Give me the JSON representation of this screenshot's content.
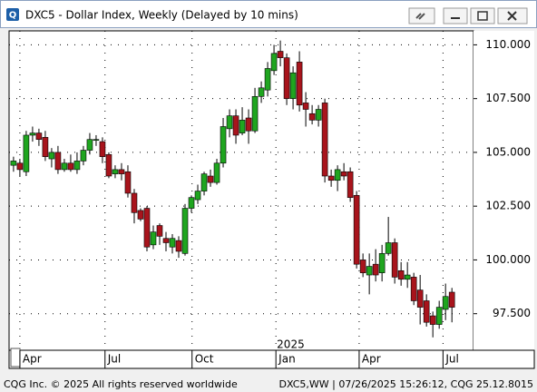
{
  "window": {
    "title": "DXC5 - Dollar Index, Weekly (Delayed by 10 mins)",
    "icon": "Q"
  },
  "footer": {
    "left": "CQG Inc. © 2025 All rights reserved worldwide",
    "right": "DXC5,WW | 07/26/2025 15:26:12, CQG 25.12.8015"
  },
  "chart_data": {
    "type": "candlestick",
    "up_color": "#1fa51f",
    "down_color": "#a8141c",
    "grid": true,
    "open": [
      104.4,
      104.5,
      104.1,
      105.8,
      105.9,
      105.7,
      104.7,
      105.0,
      104.2,
      104.5,
      104.2,
      104.6,
      105.1,
      105.6,
      105.5,
      104.9,
      104.0,
      104.2,
      104.1,
      103.1,
      102.3,
      102.4,
      100.7,
      101.6,
      101.0,
      100.6,
      100.9,
      100.3,
      102.4,
      102.8,
      103.2,
      103.9,
      103.6,
      104.5,
      106.1,
      106.7,
      105.9,
      106.6,
      106.0,
      107.6,
      107.9,
      108.8,
      109.7,
      109.4,
      107.5,
      109.2,
      107.3,
      106.8,
      106.5,
      107.3,
      103.9,
      103.7,
      104.1,
      104.1,
      103.0,
      100.0,
      99.3,
      99.8,
      99.4,
      100.3,
      100.8,
      99.5,
      99.1,
      99.2,
      98.6,
      98.1,
      97.4,
      97.0,
      97.7,
      98.5
    ],
    "high": [
      104.8,
      104.7,
      106.0,
      106.2,
      106.1,
      106.0,
      105.2,
      105.3,
      104.7,
      104.9,
      105.0,
      105.3,
      105.9,
      105.8,
      105.7,
      105.0,
      104.4,
      104.5,
      104.4,
      103.3,
      102.4,
      102.5,
      101.6,
      101.7,
      101.3,
      101.2,
      101.1,
      102.6,
      103.0,
      103.5,
      104.1,
      104.2,
      104.7,
      106.6,
      107.0,
      107.0,
      107.1,
      107.0,
      108.0,
      108.3,
      109.2,
      110.0,
      110.2,
      109.6,
      109.0,
      109.7,
      107.8,
      107.2,
      107.2,
      107.5,
      104.2,
      104.4,
      104.5,
      104.3,
      103.2,
      100.3,
      100.3,
      100.5,
      100.7,
      102.0,
      101.0,
      99.9,
      99.9,
      99.4,
      99.3,
      98.4,
      97.6,
      98.1,
      98.9,
      98.7
    ],
    "low": [
      104.1,
      103.9,
      103.9,
      105.5,
      105.3,
      104.6,
      104.3,
      104.0,
      104.1,
      104.1,
      104.0,
      104.4,
      104.9,
      105.3,
      104.5,
      103.8,
      103.8,
      103.7,
      102.9,
      101.7,
      101.8,
      100.4,
      100.5,
      100.7,
      100.4,
      100.3,
      100.1,
      100.2,
      102.2,
      102.6,
      103.0,
      103.4,
      103.5,
      104.3,
      105.7,
      105.4,
      105.8,
      105.4,
      105.9,
      107.3,
      107.6,
      108.6,
      109.0,
      107.2,
      107.0,
      106.9,
      106.2,
      106.3,
      106.2,
      103.6,
      103.4,
      103.2,
      103.7,
      102.7,
      99.6,
      99.2,
      98.4,
      99.0,
      99.0,
      100.2,
      98.9,
      98.8,
      98.7,
      97.9,
      97.0,
      96.9,
      96.4,
      96.8,
      97.2,
      97.1
    ],
    "close": [
      104.6,
      104.2,
      105.8,
      105.9,
      105.6,
      104.8,
      105.0,
      104.2,
      104.5,
      104.2,
      104.6,
      105.1,
      105.6,
      105.6,
      104.8,
      103.9,
      104.2,
      104.0,
      103.1,
      102.2,
      101.9,
      100.6,
      101.3,
      101.1,
      100.8,
      101.0,
      100.4,
      102.4,
      102.9,
      103.2,
      104.0,
      103.6,
      104.5,
      106.2,
      106.7,
      105.8,
      106.5,
      106.0,
      107.6,
      108.0,
      108.9,
      109.6,
      109.4,
      107.5,
      108.7,
      107.2,
      107.0,
      106.5,
      107.0,
      103.9,
      103.7,
      104.2,
      103.9,
      102.9,
      99.8,
      99.4,
      99.7,
      99.3,
      100.3,
      100.8,
      99.2,
      99.1,
      99.3,
      98.1,
      97.8,
      97.1,
      97.0,
      97.8,
      98.3,
      97.8
    ],
    "xlim": [
      -0.7,
      72.4
    ],
    "xticks": [
      {
        "value": 1,
        "label": "Apr"
      },
      {
        "value": 14.4,
        "label": "Jul"
      },
      {
        "value": 28.1,
        "label": "Oct"
      },
      {
        "value": 41.3,
        "label": "Jan"
      },
      {
        "value": 54.4,
        "label": "Apr"
      },
      {
        "value": 67.6,
        "label": "Jul"
      }
    ],
    "year_label": "2025",
    "ylim": [
      95.8,
      110.65
    ],
    "yticks": [
      {
        "value": 97.5,
        "label": "97.500"
      },
      {
        "value": 100,
        "label": "100.000"
      },
      {
        "value": 102.5,
        "label": "102.500"
      },
      {
        "value": 105,
        "label": "105.000"
      },
      {
        "value": 107.5,
        "label": "107.500"
      },
      {
        "value": 110,
        "label": "110.000"
      }
    ]
  }
}
